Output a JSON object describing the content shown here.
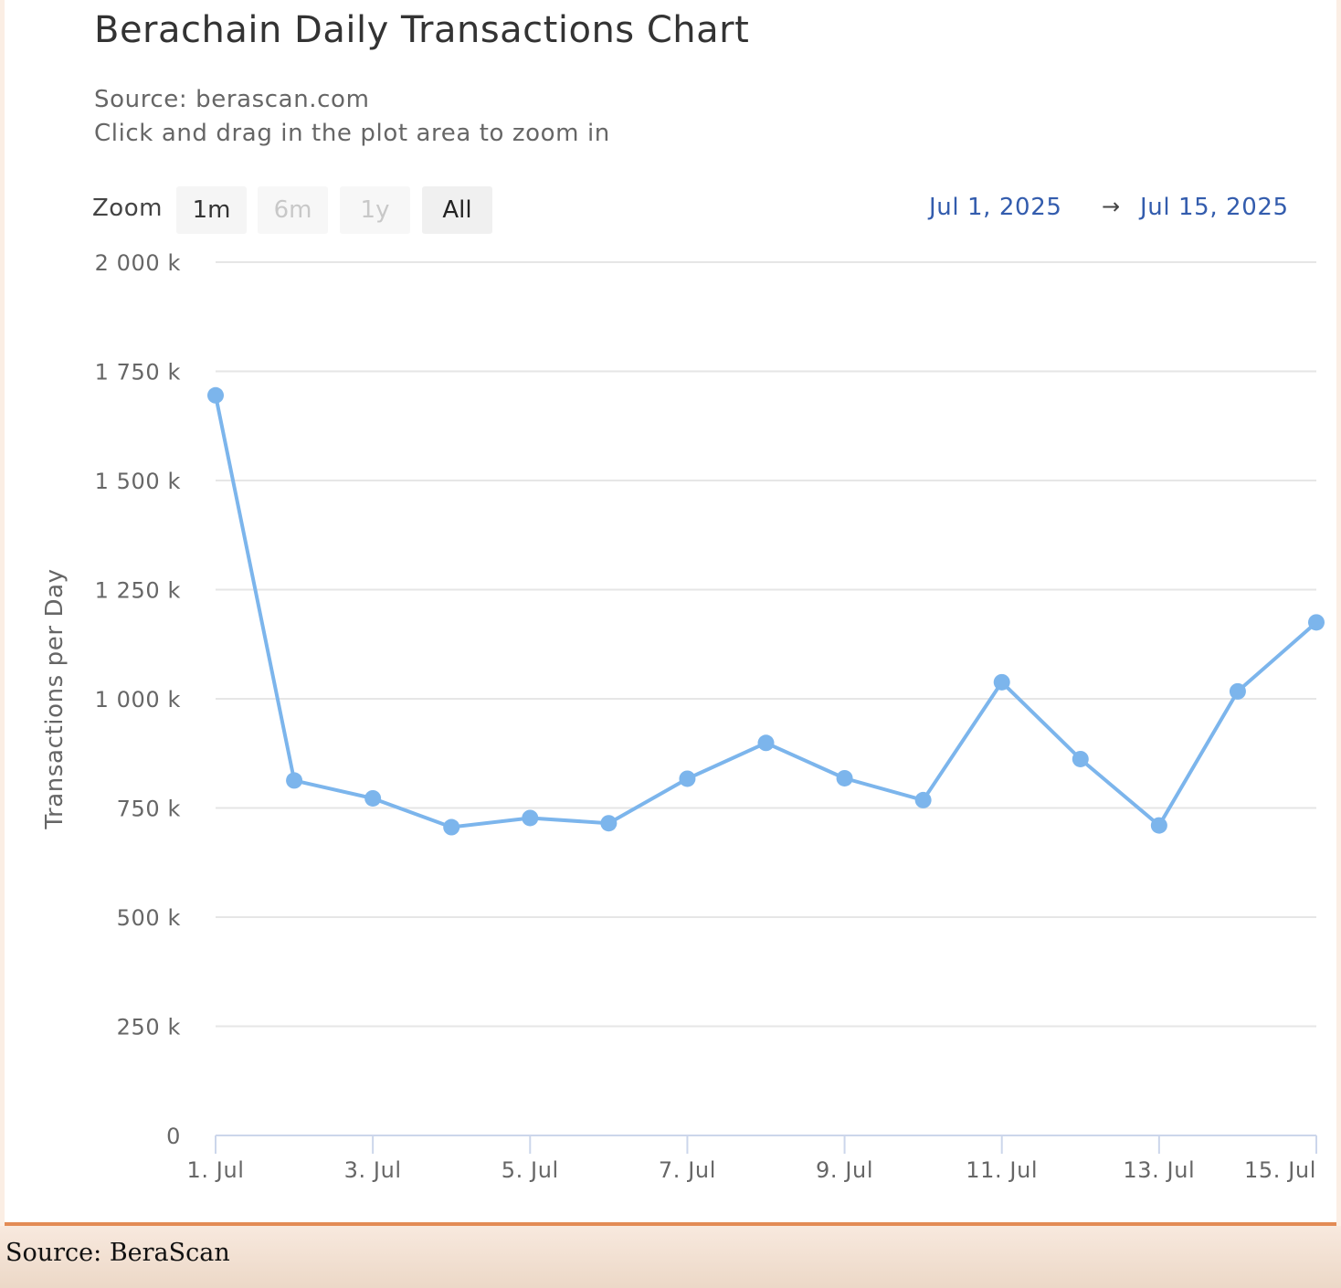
{
  "chart": {
    "title": "Berachain Daily Transactions Chart",
    "subtitle_source": "Source: berascan.com",
    "subtitle_hint": "Click and drag in the plot area to zoom in",
    "zoom_label": "Zoom",
    "zoom_buttons": [
      {
        "label": "1m",
        "state": "normal"
      },
      {
        "label": "6m",
        "state": "disabled"
      },
      {
        "label": "1y",
        "state": "disabled"
      },
      {
        "label": "All",
        "state": "active"
      }
    ],
    "range_from": "Jul 1, 2025",
    "range_arrow": "→",
    "range_to": "Jul 15, 2025"
  },
  "chart_data": {
    "type": "line",
    "ylabel": "Transactions per Day",
    "x": [
      "2025-07-01",
      "2025-07-02",
      "2025-07-03",
      "2025-07-04",
      "2025-07-05",
      "2025-07-06",
      "2025-07-07",
      "2025-07-08",
      "2025-07-09",
      "2025-07-10",
      "2025-07-11",
      "2025-07-12",
      "2025-07-13",
      "2025-07-14",
      "2025-07-15"
    ],
    "series": [
      {
        "values": [
          1695000,
          813000,
          772000,
          706000,
          727000,
          715000,
          817000,
          899000,
          818000,
          768000,
          1038000,
          862000,
          710000,
          1017000,
          1175000
        ]
      }
    ],
    "ylim": [
      0,
      2000000
    ],
    "y_ticks": [
      {
        "value": 0,
        "label": "0"
      },
      {
        "value": 250000,
        "label": "250 k"
      },
      {
        "value": 500000,
        "label": "500 k"
      },
      {
        "value": 750000,
        "label": "750 k"
      },
      {
        "value": 1000000,
        "label": "1 000 k"
      },
      {
        "value": 1250000,
        "label": "1 250 k"
      },
      {
        "value": 1500000,
        "label": "1 500 k"
      },
      {
        "value": 1750000,
        "label": "1 750 k"
      },
      {
        "value": 2000000,
        "label": "2 000 k"
      }
    ],
    "x_ticks": [
      {
        "value": "2025-07-01",
        "label": "1. Jul"
      },
      {
        "value": "2025-07-03",
        "label": "3. Jul"
      },
      {
        "value": "2025-07-05",
        "label": "5. Jul"
      },
      {
        "value": "2025-07-07",
        "label": "7. Jul"
      },
      {
        "value": "2025-07-09",
        "label": "9. Jul"
      },
      {
        "value": "2025-07-11",
        "label": "11. Jul"
      },
      {
        "value": "2025-07-13",
        "label": "13. Jul"
      },
      {
        "value": "2025-07-15",
        "label": "15. Jul"
      }
    ],
    "grid": true,
    "legend": false,
    "line_color": "#7cb5ec",
    "grid_color": "#e6e6e6",
    "axis_color": "#ccd6eb"
  },
  "footer": {
    "source": "Source: BeraScan"
  },
  "colors": {
    "accent_bar": "#e38b55",
    "link_blue": "#335cad"
  }
}
